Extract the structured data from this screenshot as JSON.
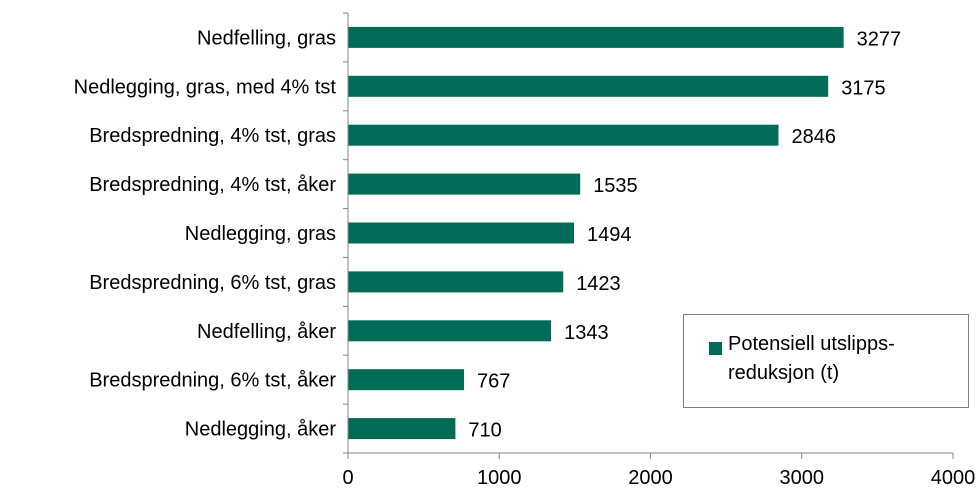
{
  "chart_data": {
    "type": "bar",
    "orientation": "horizontal",
    "categories": [
      "Nedfelling, gras",
      "Nedlegging, gras, med 4% tst",
      "Bredspredning, 4% tst, gras",
      "Bredspredning, 4% tst, åker",
      "Nedlegging, gras",
      "Bredspredning, 6% tst, gras",
      "Nedfelling, åker",
      "Bredspredning, 6% tst, åker",
      "Nedlegging, åker"
    ],
    "series": [
      {
        "name": "Potensiell utslipps-reduksjon (t)",
        "legend_lines": [
          "Potensiell utslipps-",
          "reduksjon (t)"
        ],
        "values": [
          3277,
          3175,
          2846,
          1535,
          1494,
          1423,
          1343,
          767,
          710
        ],
        "value_labels": [
          "3277",
          "3175",
          "2846",
          "1535",
          "1494",
          "1423",
          "1343",
          "767",
          "710"
        ],
        "color": "#006b57"
      }
    ],
    "xlim": [
      0,
      4000
    ],
    "xticks": [
      0,
      1000,
      2000,
      3000,
      4000
    ],
    "xtick_labels": [
      "0",
      "1000",
      "2000",
      "3000",
      "4000"
    ],
    "title": "",
    "xlabel": "",
    "ylabel": "",
    "grid": false,
    "legend_position": "bottom-right"
  }
}
